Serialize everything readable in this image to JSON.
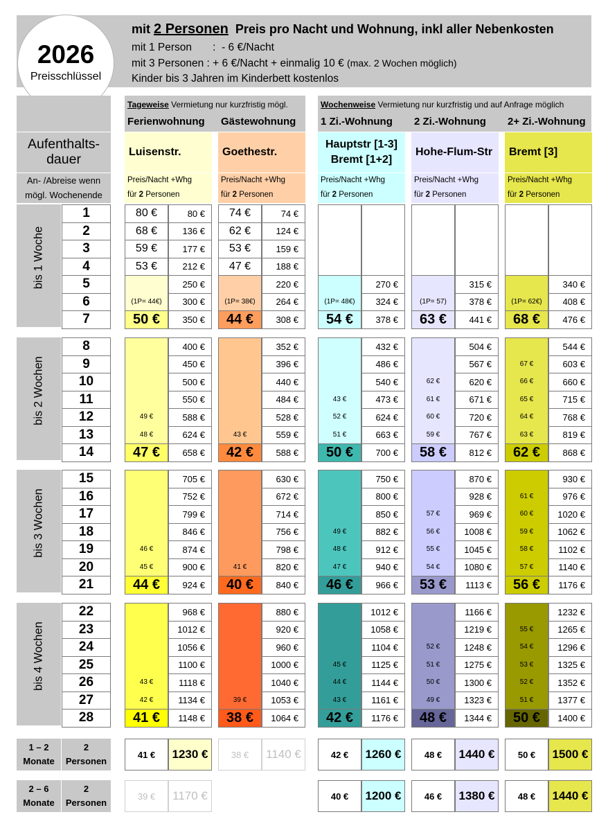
{
  "header": {
    "year": "2026",
    "key_label": "Preisschlüssel",
    "line1_pre": "mit ",
    "line1_em": "2 Personen",
    "line1_post": "Preis pro Nacht und Wohnung, inkl aller Nebenkosten",
    "line2": "mit 1 Person       :  - 6 €/Nacht",
    "line3_main": "mit 3 Personen :  + 6 €/Nacht + einmalig 10 €",
    "line3_note": "(max. 2 Wochen möglich)",
    "line4": "Kinder bis 3 Jahren im Kinderbett kostenlos"
  },
  "left": {
    "title": "Aufenthalts-\ndauer",
    "note": "An- /Abreise wenn\nmögl. Wochenende"
  },
  "groups": {
    "daily": {
      "em": "Tageweise",
      "rest": " Vermietung nur kurzfristig mögl."
    },
    "weekly": {
      "em": "Wochenweise",
      "rest": " Vermietung nur kurzfristig und auf Anfrage möglich"
    }
  },
  "per_night_label": "Preis/Nacht +Whg",
  "for_label_pre": "für ",
  "for_label_num": "2",
  "for_label_post": " Personen",
  "apartments": [
    {
      "type": "Ferienwohnung",
      "name": "Luisenstr.",
      "single": "(1P= 44€)",
      "colors": [
        "#fffed0",
        "#ffff9e",
        "#ffff75",
        "#ffff4d"
      ],
      "wk": [
        "50 €",
        "47 €",
        "44 €",
        "41 €"
      ],
      "wk_colors": [
        "#ffff8a",
        "#ffff66",
        "#ffff33",
        "#ffff00"
      ],
      "ov": {
        "12": "49 €",
        "13": "48 €",
        "19": "46 €",
        "20": "45 €",
        "26": "43 €",
        "27": "42 €"
      },
      "totals": [
        "80 €",
        "136 €",
        "177 €",
        "212 €",
        "250 €",
        "300 €",
        "350 €",
        "400 €",
        "450 €",
        "500 €",
        "550 €",
        "588 €",
        "624 €",
        "658 €",
        "705 €",
        "752 €",
        "799 €",
        "846 €",
        "874 €",
        "900 €",
        "924 €",
        "968 €",
        "1012 €",
        "1056 €",
        "1100 €",
        "1118 €",
        "1134 €",
        "1148 €"
      ],
      "daily": [
        "80 €",
        "68 €",
        "59 €",
        "53 €"
      ],
      "m12": [
        "41 €",
        "1230 €"
      ],
      "m26": [
        "39 €",
        "1170 €"
      ],
      "faded12": false,
      "faded26": true,
      "bg12": "#ffffcc",
      "bg26": "#ffffff"
    },
    {
      "type": "Gästewohnung",
      "name": "Goethestr.",
      "single": "(1P= 38€)",
      "colors": [
        "#ffd0a8",
        "#ffc690",
        "#ff9a5e",
        "#ff6a33"
      ],
      "wk": [
        "44 €",
        "42 €",
        "40 €",
        "38 €"
      ],
      "wk_colors": [
        "#ff9d5c",
        "#ff8a3d",
        "#ff6a1f",
        "#ff5a1a"
      ],
      "ov": {
        "13": "43 €",
        "20": "41 €",
        "27": "39 €"
      },
      "totals": [
        "74 €",
        "124 €",
        "159 €",
        "188 €",
        "220 €",
        "264 €",
        "308 €",
        "352 €",
        "396 €",
        "440 €",
        "484 €",
        "528 €",
        "559 €",
        "588 €",
        "630 €",
        "672 €",
        "714 €",
        "756 €",
        "798 €",
        "820 €",
        "840 €",
        "880 €",
        "920 €",
        "960 €",
        "1000 €",
        "1040 €",
        "1053 €",
        "1064 €"
      ],
      "daily": [
        "74 €",
        "62 €",
        "53 €",
        "47 €"
      ],
      "m12": [
        "38 €",
        "1140 €"
      ],
      "m26": [
        "",
        ""
      ],
      "faded12": true,
      "faded26": false,
      "bg12": "#ffffff",
      "bg26": "#ffffff"
    },
    {
      "type": "1 Zi.-Wohnung",
      "name": "Hauptstr [1-3]\nBremt [1+2]",
      "single": "(1P= 48€)",
      "colors": [
        "#ccffff",
        "#cfffff",
        "#4cc6bd",
        "#339e99"
      ],
      "wk": [
        "54 €",
        "50 €",
        "46 €",
        "42 €"
      ],
      "wk_colors": [
        "#ccffff",
        "#3fb8ae",
        "#339e99",
        "#339e99"
      ],
      "ov": {
        "11": "43 €",
        "12": "52 €",
        "13": "51 €",
        "18": "49 €",
        "19": "48 €",
        "20": "47 €",
        "25": "45 €",
        "26": "44 €",
        "27": "43 €"
      },
      "totals": [
        "",
        "",
        "",
        "",
        "270 €",
        "324 €",
        "378 €",
        "432 €",
        "486 €",
        "540 €",
        "473 €",
        "624 €",
        "663 €",
        "700 €",
        "750 €",
        "800 €",
        "850 €",
        "882 €",
        "912 €",
        "940 €",
        "966 €",
        "1012 €",
        "1058 €",
        "1104 €",
        "1125 €",
        "1144 €",
        "1161 €",
        "1176 €"
      ],
      "daily": [],
      "m12": [
        "42 €",
        "1260 €"
      ],
      "m26": [
        "40 €",
        "1200 €"
      ],
      "faded12": false,
      "faded26": false,
      "bg12": "#ccffff",
      "bg26": "#ccffff"
    },
    {
      "type": "2 Zi.-Wohnung",
      "name": "Hohe-Flum-Str",
      "single": "(1P= 57)",
      "colors": [
        "#e6e6ff",
        "#e6e6ff",
        "#ccccff",
        "#9999cc"
      ],
      "wk": [
        "63 €",
        "58 €",
        "53 €",
        "48 €"
      ],
      "wk_colors": [
        "#e6e6ff",
        "#ccccff",
        "#9999cc",
        "#666699"
      ],
      "ov": {
        "10": "62 €",
        "11": "61 €",
        "12": "60 €",
        "13": "59 €",
        "17": "57 €",
        "18": "56 €",
        "19": "55 €",
        "20": "54 €",
        "24": "52 €",
        "25": "51 €",
        "26": "50 €",
        "27": "49 €"
      },
      "totals": [
        "",
        "",
        "",
        "",
        "315 €",
        "378 €",
        "441 €",
        "504 €",
        "567 €",
        "620 €",
        "671 €",
        "720 €",
        "767 €",
        "812 €",
        "870 €",
        "928 €",
        "969 €",
        "1008 €",
        "1045 €",
        "1080 €",
        "1113 €",
        "1166 €",
        "1219 €",
        "1248 €",
        "1275 €",
        "1300 €",
        "1323 €",
        "1344 €"
      ],
      "daily": [],
      "m12": [
        "48 €",
        "1440 €"
      ],
      "m26": [
        "46 €",
        "1380 €"
      ],
      "faded12": false,
      "faded26": false,
      "bg12": "#e6e6ff",
      "bg26": "#e6e6ff"
    },
    {
      "type": "2+ Zi.-Wohnung",
      "name": "Bremt [3]",
      "single": "(1P= 62€)",
      "colors": [
        "#e6e64d",
        "#e6e64d",
        "#cccc00",
        "#999900"
      ],
      "wk": [
        "68 €",
        "62 €",
        "56 €",
        "50 €"
      ],
      "wk_colors": [
        "#e6e64d",
        "#cccc00",
        "#cccc00",
        "#666600"
      ],
      "ov": {
        "9": "67 €",
        "10": "66 €",
        "11": "65 €",
        "12": "64 €",
        "13": "63 €",
        "16": "61 €",
        "17": "60 €",
        "18": "59 €",
        "19": "58 €",
        "20": "57 €",
        "23": "55 €",
        "24": "54 €",
        "25": "53 €",
        "26": "52 €",
        "27": "51 €"
      },
      "totals": [
        "",
        "",
        "",
        "",
        "340 €",
        "408 €",
        "476 €",
        "544 €",
        "603 €",
        "660 €",
        "715 €",
        "768 €",
        "819 €",
        "868 €",
        "930 €",
        "976 €",
        "1020 €",
        "1062 €",
        "1102 €",
        "1140 €",
        "1176 €",
        "1232 €",
        "1265 €",
        "1296 €",
        "1325 €",
        "1352 €",
        "1377 €",
        "1400 €"
      ],
      "daily": [],
      "m12": [
        "50 €",
        "1500 €"
      ],
      "m26": [
        "48 €",
        "1440 €"
      ],
      "faded12": false,
      "faded26": false,
      "bg12": "#e6e64d",
      "bg26": "#e6e64d"
    }
  ],
  "weeks": [
    "bis 1 Woche",
    "bis 2 Wochen",
    "bis 3 Wochen",
    "bis 4 Wochen"
  ],
  "months": [
    {
      "range": "1 – 2",
      "unit": "Monate",
      "persons": "2",
      "plabel": "Personen"
    },
    {
      "range": "2 – 6",
      "unit": "Monate",
      "persons": "2",
      "plabel": "Personen"
    }
  ],
  "days": [
    "1",
    "2",
    "3",
    "4",
    "5",
    "6",
    "7",
    "8",
    "9",
    "10",
    "11",
    "12",
    "13",
    "14",
    "15",
    "16",
    "17",
    "18",
    "19",
    "20",
    "21",
    "22",
    "23",
    "24",
    "25",
    "26",
    "27",
    "28"
  ]
}
